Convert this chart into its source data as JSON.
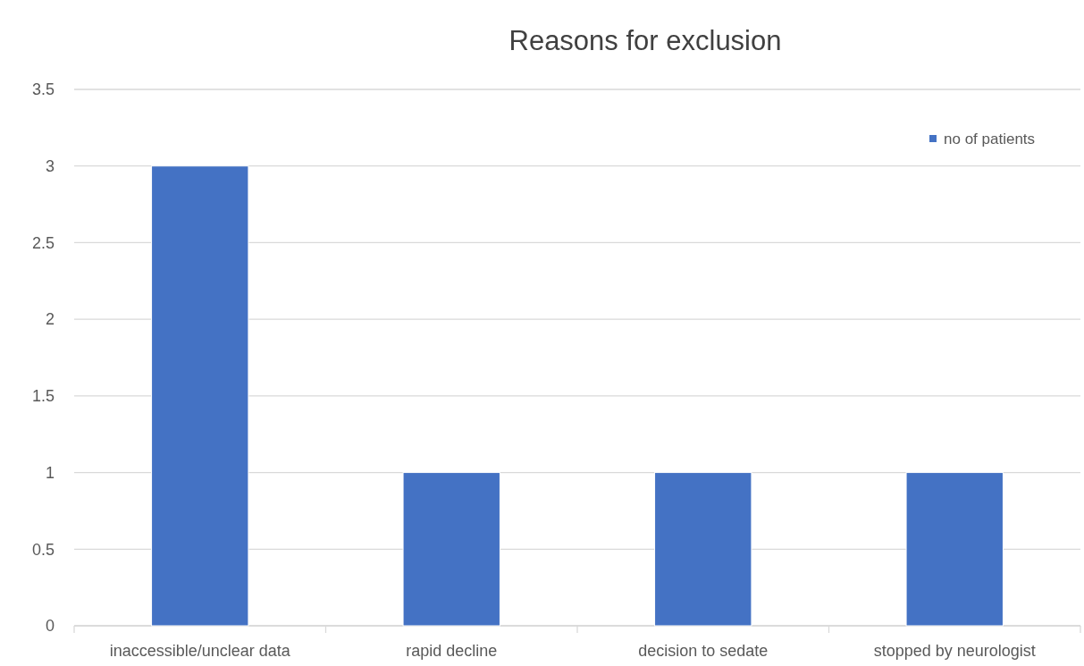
{
  "chart_data": {
    "type": "bar",
    "title": "Reasons for exclusion",
    "categories": [
      "inaccessible/unclear data",
      "rapid decline",
      "decision to sedate",
      "stopped by neurologist"
    ],
    "series": [
      {
        "name": "no of patients",
        "color": "#4472c4",
        "values": [
          3,
          1,
          1,
          1
        ]
      }
    ],
    "ylim": [
      0,
      3.5
    ],
    "yticks": [
      0,
      0.5,
      1,
      1.5,
      2,
      2.5,
      3,
      3.5
    ],
    "grid": "y",
    "legend": "top right"
  }
}
